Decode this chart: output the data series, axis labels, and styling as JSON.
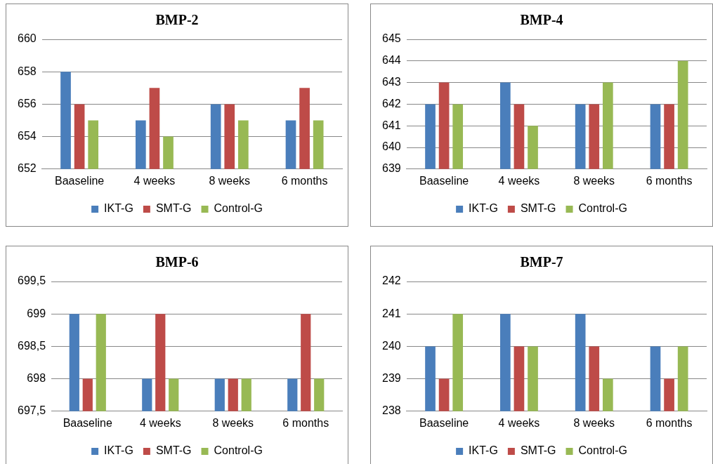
{
  "chart_data": [
    {
      "type": "bar",
      "title": "BMP-2",
      "categories": [
        "Baaseline",
        "4 weeks",
        "8 weeks",
        "6 months"
      ],
      "series": [
        {
          "name": "IKT-G",
          "color": "#4a7ebb",
          "values": [
            658,
            655,
            656,
            655
          ]
        },
        {
          "name": "SMT-G",
          "color": "#be4b48",
          "values": [
            656,
            657,
            656,
            657
          ]
        },
        {
          "name": "Control-G",
          "color": "#98b954",
          "values": [
            655,
            654,
            655,
            655
          ]
        }
      ],
      "ylim": [
        652,
        660
      ],
      "yticks": [
        652,
        654,
        656,
        658,
        660
      ],
      "grid": "y",
      "legend": "bottom"
    },
    {
      "type": "bar",
      "title": "BMP-4",
      "categories": [
        "Baaseline",
        "4 weeks",
        "8 weeks",
        "6 months"
      ],
      "series": [
        {
          "name": "IKT-G",
          "color": "#4a7ebb",
          "values": [
            642,
            643,
            642,
            642
          ]
        },
        {
          "name": "SMT-G",
          "color": "#be4b48",
          "values": [
            643,
            642,
            642,
            642
          ]
        },
        {
          "name": "Control-G",
          "color": "#98b954",
          "values": [
            642,
            641,
            643,
            644
          ]
        }
      ],
      "ylim": [
        639,
        645
      ],
      "yticks": [
        639,
        640,
        641,
        642,
        643,
        644,
        645
      ],
      "grid": "y",
      "legend": "bottom"
    },
    {
      "type": "bar",
      "title": "BMP-6",
      "categories": [
        "Baaseline",
        "4 weeks",
        "8 weeks",
        "6 months"
      ],
      "series": [
        {
          "name": "IKT-G",
          "color": "#4a7ebb",
          "values": [
            699,
            698,
            698,
            698
          ]
        },
        {
          "name": "SMT-G",
          "color": "#be4b48",
          "values": [
            698,
            699,
            698,
            699
          ]
        },
        {
          "name": "Control-G",
          "color": "#98b954",
          "values": [
            699,
            698,
            698,
            698
          ]
        }
      ],
      "ylim": [
        697.5,
        699.5
      ],
      "yticks": [
        {
          "value": 697.5,
          "label": "697,5"
        },
        698,
        {
          "value": 698.5,
          "label": "698,5"
        },
        699,
        {
          "value": 699.5,
          "label": "699,5"
        }
      ],
      "grid": "y",
      "legend": "bottom"
    },
    {
      "type": "bar",
      "title": "BMP-7",
      "categories": [
        "Baaseline",
        "4 weeks",
        "8 weeks",
        "6 months"
      ],
      "series": [
        {
          "name": "IKT-G",
          "color": "#4a7ebb",
          "values": [
            240,
            241,
            241,
            240
          ]
        },
        {
          "name": "SMT-G",
          "color": "#be4b48",
          "values": [
            239,
            240,
            240,
            239
          ]
        },
        {
          "name": "Control-G",
          "color": "#98b954",
          "values": [
            241,
            240,
            239,
            240
          ]
        }
      ],
      "ylim": [
        238,
        242
      ],
      "yticks": [
        238,
        239,
        240,
        241,
        242
      ],
      "grid": "y",
      "legend": "bottom"
    }
  ]
}
